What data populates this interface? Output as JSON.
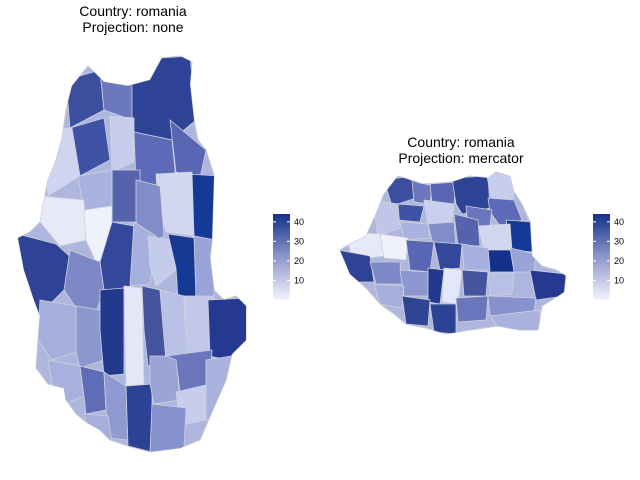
{
  "panels": [
    {
      "title_line1": "Country: romania",
      "title_line2": "Projection: none",
      "legend": {
        "ticks": [
          "10",
          "20",
          "30",
          "40"
        ],
        "range": [
          0,
          44
        ]
      }
    },
    {
      "title_line1": "Country: romania",
      "title_line2": "Projection: mercator",
      "legend": {
        "ticks": [
          "10",
          "20",
          "30",
          "40"
        ],
        "range": [
          0,
          44
        ]
      }
    }
  ],
  "colors": {
    "scale_low": "#eef0fb",
    "scale_high": "#13318a",
    "border": "#c8cad2",
    "background": "#ffffff"
  }
}
